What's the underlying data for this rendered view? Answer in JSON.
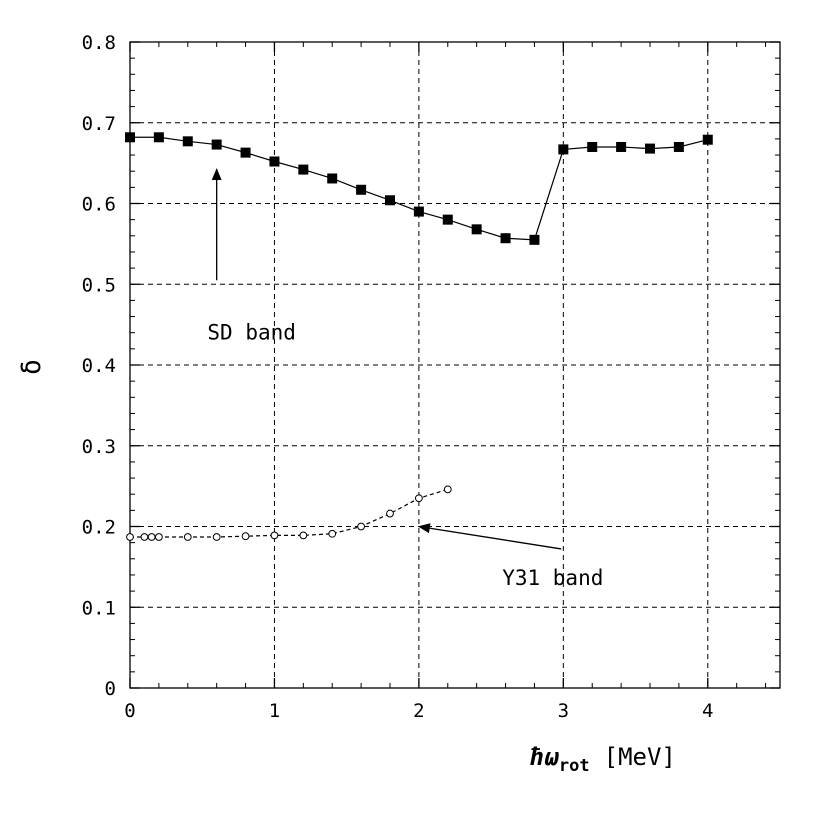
{
  "chart_data": {
    "type": "line",
    "xlabel": "ħω",
    "xlabel_sub": "rot",
    "xlabel_unit": "[MeV]",
    "ylabel": "δ",
    "xlim": [
      0,
      4.5
    ],
    "ylim": [
      0,
      0.8
    ],
    "x_ticks": [
      0,
      1,
      2,
      3,
      4
    ],
    "x_tick_labels": [
      "0",
      "1",
      "2",
      "3",
      "4"
    ],
    "y_ticks": [
      0,
      0.1,
      0.2,
      0.3,
      0.4,
      0.5,
      0.6,
      0.7,
      0.8
    ],
    "y_tick_labels": [
      "0",
      "0.1",
      "0.2",
      "0.3",
      "0.4",
      "0.5",
      "0.6",
      "0.7",
      "0.8"
    ],
    "grid": true,
    "series": [
      {
        "line": "solid",
        "marker": "filled-square",
        "x": [
          0,
          0.2,
          0.4,
          0.6,
          0.8,
          1.0,
          1.2,
          1.4,
          1.6,
          1.8,
          2.0,
          2.2,
          2.4,
          2.6,
          2.8,
          3.0,
          3.2,
          3.4,
          3.6,
          3.8,
          4.0
        ],
        "y": [
          0.682,
          0.682,
          0.677,
          0.673,
          0.663,
          0.652,
          0.642,
          0.631,
          0.617,
          0.604,
          0.59,
          0.58,
          0.568,
          0.557,
          0.555,
          0.667,
          0.67,
          0.67,
          0.668,
          0.67,
          0.679
        ]
      },
      {
        "line": "dashed",
        "marker": "open-circle",
        "x": [
          0,
          0.1,
          0.15,
          0.2,
          0.4,
          0.6,
          0.8,
          1.0,
          1.2,
          1.4,
          1.6,
          1.8,
          2.0,
          2.2
        ],
        "y": [
          0.187,
          0.187,
          0.187,
          0.187,
          0.187,
          0.187,
          0.188,
          0.189,
          0.189,
          0.191,
          0.2,
          0.216,
          0.235,
          0.246
        ]
      }
    ],
    "annotations": [
      {
        "text": "SD band",
        "x": 0.6,
        "y": 0.5,
        "arrow_to": [
          0.6,
          0.645
        ]
      },
      {
        "text": "Y31 band",
        "x": 3.65,
        "y": 0.14,
        "arrow_to": [
          2.0,
          0.2
        ]
      }
    ]
  }
}
